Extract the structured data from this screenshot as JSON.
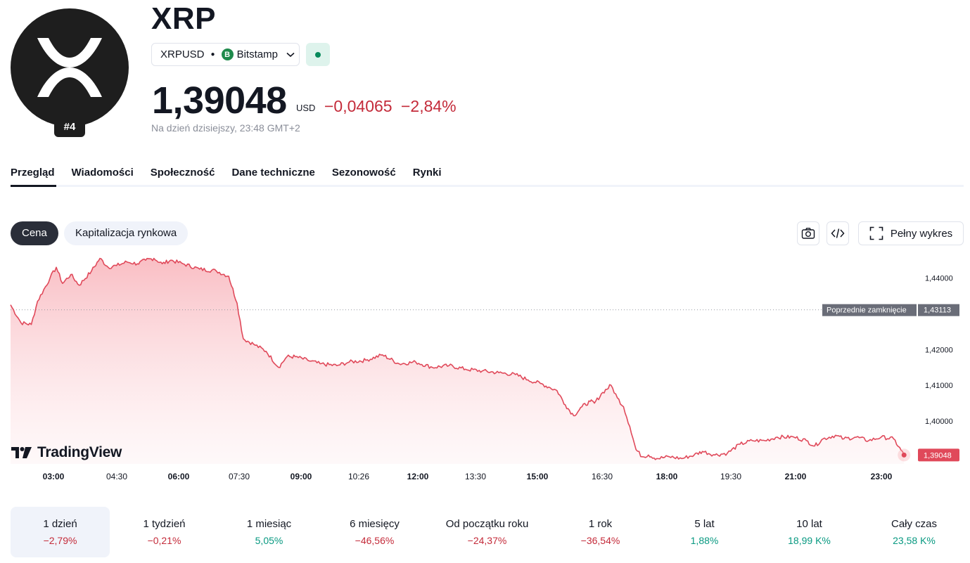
{
  "symbol": {
    "title": "XRP",
    "rank": "#4",
    "ticker": "XRPUSD",
    "exchange": "Bitstamp",
    "exchange_icon_letter": "B",
    "price": "1,39048",
    "currency": "USD",
    "change_abs": "−0,04065",
    "change_pct": "−2,84%",
    "as_of": "Na dzień dzisiejszy, 23:48 GMT+2",
    "logo_icon": "xrp-logo-icon",
    "market_status": "market-open"
  },
  "tabs": [
    "Przegląd",
    "Wiadomości",
    "Społeczność",
    "Dane techniczne",
    "Sezonowość",
    "Rynki"
  ],
  "segments": {
    "active": "Cena",
    "inactive": "Kapitalizacja rynkowa"
  },
  "toolbar": {
    "fullscreen_label": "Pełny wykres"
  },
  "branding": {
    "watermark": "TradingView"
  },
  "colors": {
    "negative": "#c42b3a",
    "positive": "#089981",
    "line": "#e0495a"
  },
  "chart_data": {
    "type": "area",
    "x_tick_labels": [
      "03:00",
      "04:30",
      "06:00",
      "07:30",
      "09:00",
      "10:26",
      "12:00",
      "13:30",
      "15:00",
      "16:30",
      "18:00",
      "19:30",
      "21:00",
      "23:00"
    ],
    "bold_ticks": [
      "03:00",
      "06:00",
      "09:00",
      "12:00",
      "15:00",
      "18:00",
      "21:00",
      "23:00"
    ],
    "y_tick_labels": [
      "1,44000",
      "1,42000",
      "1,41000",
      "1,40000"
    ],
    "y_ticks": [
      1.44,
      1.42,
      1.41,
      1.4
    ],
    "ylim": [
      1.388,
      1.447
    ],
    "reference_line": {
      "label": "Poprzednie zamknięcie",
      "value_label": "1,43113",
      "value": 1.43113
    },
    "last_value_label": "1,39048",
    "last_value": 1.39048,
    "x_hours": [
      1.95,
      2.2,
      2.45,
      2.6,
      2.9,
      3.05,
      3.2,
      3.4,
      3.6,
      3.9,
      4.1,
      4.3,
      4.5,
      4.75,
      5.0,
      5.2,
      5.4,
      5.6,
      5.8,
      6.1,
      6.5,
      6.9,
      7.2,
      7.4,
      7.55,
      7.8,
      8.1,
      8.4,
      8.6,
      8.8,
      9.1,
      9.4,
      9.8,
      10.1,
      10.5,
      10.9,
      11.3,
      11.7,
      12.1,
      12.5,
      12.9,
      13.3,
      13.7,
      14.1,
      14.4,
      14.7,
      14.9,
      15.1,
      15.3,
      15.5,
      15.7,
      15.9,
      16.0,
      16.2,
      16.4,
      16.55,
      16.7,
      16.85,
      17.0,
      17.15,
      17.3,
      17.5,
      17.8,
      18.1,
      18.4,
      18.6,
      18.9,
      19.2,
      19.5,
      19.8,
      20.1,
      20.4,
      20.8,
      21.1,
      21.3,
      21.5,
      21.8,
      22.0,
      22.3,
      22.6,
      22.9,
      23.2,
      23.45
    ],
    "values": [
      1.4325,
      1.4275,
      1.427,
      1.4335,
      1.44,
      1.443,
      1.4385,
      1.441,
      1.438,
      1.442,
      1.4455,
      1.443,
      1.4435,
      1.4445,
      1.444,
      1.445,
      1.4455,
      1.444,
      1.445,
      1.444,
      1.4425,
      1.442,
      1.4405,
      1.433,
      1.423,
      1.4215,
      1.4195,
      1.415,
      1.418,
      1.418,
      1.417,
      1.416,
      1.4155,
      1.4165,
      1.417,
      1.4185,
      1.416,
      1.4165,
      1.415,
      1.4155,
      1.4145,
      1.414,
      1.4135,
      1.413,
      1.4115,
      1.4105,
      1.4095,
      1.4085,
      1.4045,
      1.4015,
      1.404,
      1.4055,
      1.405,
      1.408,
      1.41,
      1.4065,
      1.404,
      1.3985,
      1.392,
      1.39,
      1.3905,
      1.3895,
      1.39,
      1.3895,
      1.3905,
      1.3915,
      1.3905,
      1.391,
      1.3935,
      1.3945,
      1.3945,
      1.3955,
      1.3955,
      1.3945,
      1.393,
      1.395,
      1.396,
      1.395,
      1.3955,
      1.3945,
      1.3955,
      1.395,
      1.39048
    ]
  },
  "performance": [
    {
      "label": "1 dzień",
      "value": "−2,79%",
      "sign": "neg",
      "active": true
    },
    {
      "label": "1 tydzień",
      "value": "−0,21%",
      "sign": "neg",
      "active": false
    },
    {
      "label": "1 miesiąc",
      "value": "5,05%",
      "sign": "pos",
      "active": false
    },
    {
      "label": "6 miesięcy",
      "value": "−46,56%",
      "sign": "neg",
      "active": false
    },
    {
      "label": "Od początku roku",
      "value": "−24,37%",
      "sign": "neg",
      "active": false
    },
    {
      "label": "1 rok",
      "value": "−36,54%",
      "sign": "neg",
      "active": false
    },
    {
      "label": "5 lat",
      "value": "1,88%",
      "sign": "pos",
      "active": false
    },
    {
      "label": "10 lat",
      "value": "18,99 K%",
      "sign": "pos",
      "active": false
    },
    {
      "label": "Cały czas",
      "value": "23,58 K%",
      "sign": "pos",
      "active": false
    }
  ]
}
